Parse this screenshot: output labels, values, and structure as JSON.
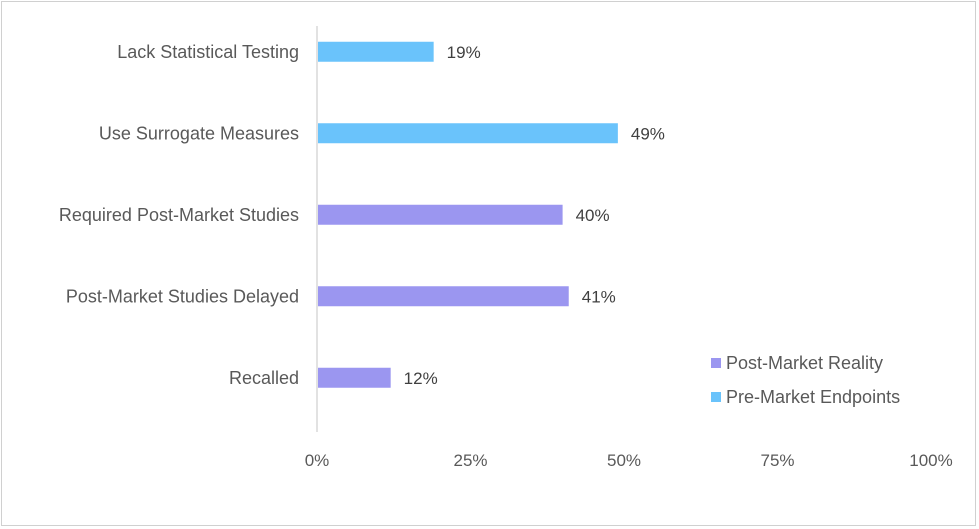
{
  "chart_data": {
    "type": "bar",
    "orientation": "horizontal",
    "title": "",
    "xlabel": "",
    "ylabel": "",
    "xlim": [
      0,
      100
    ],
    "x_ticks": [
      "0%",
      "25%",
      "50%",
      "75%",
      "100%"
    ],
    "categories": [
      "Lack Statistical Testing",
      "Use Surrogate Measures",
      "Required Post-Market Studies",
      "Post-Market Studies Delayed",
      "Recalled"
    ],
    "series": [
      {
        "name": "Pre-Market Endpoints",
        "color": "#6ac3fb",
        "values": [
          19,
          49,
          null,
          null,
          null
        ]
      },
      {
        "name": "Post-Market Reality",
        "color": "#9b96f0",
        "values": [
          null,
          null,
          40,
          41,
          12
        ]
      }
    ],
    "data_labels": [
      "19%",
      "49%",
      "40%",
      "41%",
      "12%"
    ],
    "legend": {
      "position": "bottom-right",
      "items": [
        {
          "label": "Post-Market Reality",
          "color": "#9b96f0"
        },
        {
          "label": "Pre-Market Endpoints",
          "color": "#6ac3fb"
        }
      ]
    },
    "grid": false
  }
}
